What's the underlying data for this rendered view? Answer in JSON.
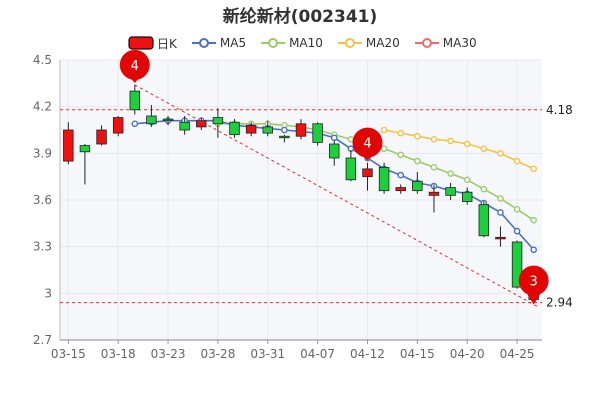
{
  "header": {
    "title": "新纶新材(002341)"
  },
  "colors": {
    "up": "#ee1111",
    "down": "#1ccf3c",
    "ma5": "#4a6fc6",
    "ma10": "#99cc66",
    "ma20": "#f5c243",
    "ma30": "#f06a6a",
    "grid": "#e9e9e9",
    "plot_bg": "#f6f7fb",
    "ref_line": "#e03030",
    "marker": "#e10606"
  },
  "chart_data": {
    "type": "candlestick",
    "legend": [
      "日K",
      "MA5",
      "MA10",
      "MA20",
      "MA30"
    ],
    "legend_placement": "top",
    "grid": true,
    "ylim": [
      2.7,
      4.5
    ],
    "y_ticks": [
      "4.5",
      "4.2",
      "3.9",
      "3.6",
      "3.3",
      "3",
      "2.7"
    ],
    "x_ticks": [
      "03-15",
      "03-18",
      "03-23",
      "03-28",
      "03-31",
      "04-07",
      "04-12",
      "04-15",
      "04-20",
      "04-25"
    ],
    "reference_lines": [
      {
        "value": 4.18,
        "label": "4.18"
      },
      {
        "value": 2.94,
        "label": "2.94"
      }
    ],
    "markers": [
      {
        "label": "4",
        "candle": 4
      },
      {
        "label": "4",
        "candle": 18
      },
      {
        "label": "3",
        "candle": 28
      }
    ],
    "candles": [
      {
        "date": "03-15",
        "open": 3.85,
        "close": 4.05,
        "high": 4.1,
        "low": 3.83
      },
      {
        "date": "03-16",
        "open": 3.95,
        "close": 3.91,
        "high": 3.96,
        "low": 3.7
      },
      {
        "date": "03-17",
        "open": 3.96,
        "close": 4.05,
        "high": 4.08,
        "low": 3.95
      },
      {
        "date": "03-18",
        "open": 4.03,
        "close": 4.13,
        "high": 4.14,
        "low": 4.01
      },
      {
        "date": "03-21",
        "open": 4.3,
        "close": 4.18,
        "high": 4.34,
        "low": 4.15
      },
      {
        "date": "03-22",
        "open": 4.14,
        "close": 4.09,
        "high": 4.21,
        "low": 4.07
      },
      {
        "date": "03-23",
        "open": 4.12,
        "close": 4.11,
        "high": 4.14,
        "low": 4.08
      },
      {
        "date": "03-24",
        "open": 4.1,
        "close": 4.05,
        "high": 4.14,
        "low": 4.02
      },
      {
        "date": "03-25",
        "open": 4.07,
        "close": 4.11,
        "high": 4.13,
        "low": 4.05
      },
      {
        "date": "03-28",
        "open": 4.13,
        "close": 4.09,
        "high": 4.19,
        "low": 4.0
      },
      {
        "date": "03-29",
        "open": 4.1,
        "close": 4.02,
        "high": 4.12,
        "low": 4.0
      },
      {
        "date": "03-30",
        "open": 4.03,
        "close": 4.08,
        "high": 4.1,
        "low": 4.01
      },
      {
        "date": "03-31",
        "open": 4.07,
        "close": 4.03,
        "high": 4.11,
        "low": 4.01
      },
      {
        "date": "04-01",
        "open": 4.01,
        "close": 4.0,
        "high": 4.02,
        "low": 3.97
      },
      {
        "date": "04-06",
        "open": 4.01,
        "close": 4.09,
        "high": 4.12,
        "low": 3.99
      },
      {
        "date": "04-07",
        "open": 4.09,
        "close": 3.97,
        "high": 4.1,
        "low": 3.95
      },
      {
        "date": "04-08",
        "open": 3.96,
        "close": 3.87,
        "high": 3.98,
        "low": 3.82
      },
      {
        "date": "04-11",
        "open": 3.87,
        "close": 3.73,
        "high": 3.92,
        "low": 3.72
      },
      {
        "date": "04-12",
        "open": 3.75,
        "close": 3.8,
        "high": 3.84,
        "low": 3.66
      },
      {
        "date": "04-13",
        "open": 3.81,
        "close": 3.66,
        "high": 3.84,
        "low": 3.64
      },
      {
        "date": "04-14",
        "open": 3.66,
        "close": 3.68,
        "high": 3.7,
        "low": 3.64
      },
      {
        "date": "04-15",
        "open": 3.72,
        "close": 3.66,
        "high": 3.78,
        "low": 3.64
      },
      {
        "date": "04-18",
        "open": 3.63,
        "close": 3.65,
        "high": 3.7,
        "low": 3.52
      },
      {
        "date": "04-19",
        "open": 3.68,
        "close": 3.63,
        "high": 3.71,
        "low": 3.6
      },
      {
        "date": "04-20",
        "open": 3.65,
        "close": 3.59,
        "high": 3.68,
        "low": 3.57
      },
      {
        "date": "04-21",
        "open": 3.57,
        "close": 3.37,
        "high": 3.59,
        "low": 3.36
      },
      {
        "date": "04-22",
        "open": 3.35,
        "close": 3.36,
        "high": 3.43,
        "low": 3.3
      },
      {
        "date": "04-25",
        "open": 3.33,
        "close": 3.04,
        "high": 3.34,
        "low": 3.03
      },
      {
        "date": "04-26",
        "open": 3.02,
        "close": 2.96,
        "high": 3.08,
        "low": 2.94
      }
    ],
    "ma5": [
      null,
      null,
      null,
      null,
      4.09,
      4.1,
      4.11,
      4.11,
      4.11,
      4.11,
      4.08,
      4.07,
      4.06,
      4.05,
      4.04,
      4.03,
      4.0,
      3.93,
      3.87,
      3.8,
      3.76,
      3.71,
      3.69,
      3.66,
      3.64,
      3.58,
      3.52,
      3.4,
      3.28
    ],
    "ma10": [
      null,
      null,
      null,
      null,
      null,
      null,
      null,
      null,
      null,
      4.09,
      4.09,
      4.09,
      4.09,
      4.08,
      4.07,
      4.05,
      4.02,
      3.99,
      3.96,
      3.93,
      3.89,
      3.85,
      3.81,
      3.77,
      3.73,
      3.67,
      3.61,
      3.54,
      3.47
    ],
    "ma20": [
      null,
      null,
      null,
      null,
      null,
      null,
      null,
      null,
      null,
      null,
      null,
      null,
      null,
      null,
      null,
      null,
      null,
      null,
      null,
      4.05,
      4.03,
      4.01,
      3.99,
      3.98,
      3.96,
      3.93,
      3.9,
      3.85,
      3.8
    ]
  }
}
